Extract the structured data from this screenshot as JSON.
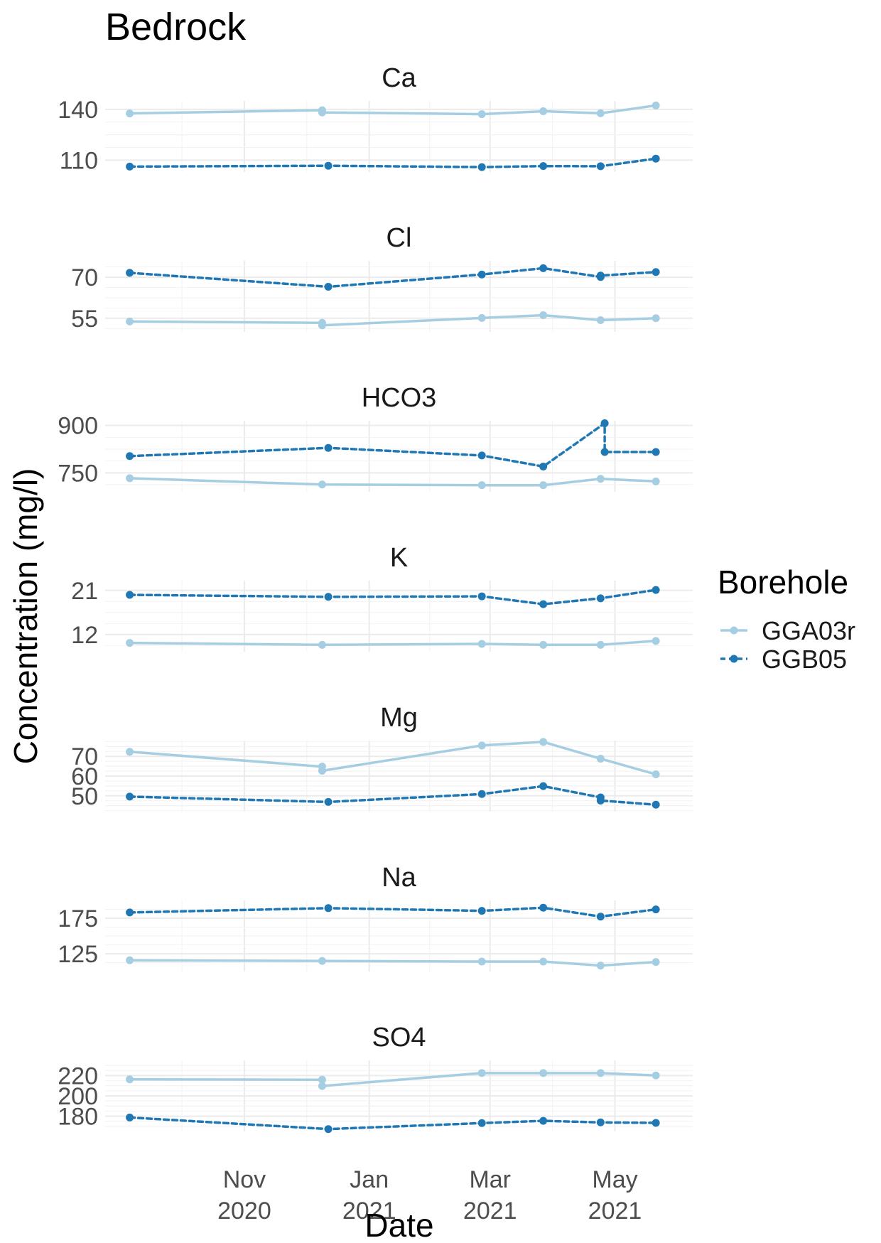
{
  "chart_data": {
    "type": "line",
    "title": "Bedrock",
    "xlabel": "Date",
    "ylabel": "Concentration (mg/l)",
    "legend": {
      "title": "Borehole",
      "position": "right",
      "entries": [
        {
          "name": "GGA03r",
          "color": "#a6cee3",
          "linetype": "solid"
        },
        {
          "name": "GGB05",
          "color": "#1f78b4",
          "linetype": "dashed"
        }
      ]
    },
    "x_ticks": [
      {
        "date": "2020-11-01",
        "label1": "Nov",
        "label2": "2020"
      },
      {
        "date": "2021-01-01",
        "label1": "Jan",
        "label2": "2021"
      },
      {
        "date": "2021-03-01",
        "label1": "Mar",
        "label2": "2021"
      },
      {
        "date": "2021-05-01",
        "label1": "May",
        "label2": "2021"
      }
    ],
    "xlim": [
      "2020-08-25",
      "2021-06-08"
    ],
    "facets": [
      {
        "name": "Ca",
        "ylim": [
          103,
          145
        ],
        "yticks": [
          110,
          140
        ],
        "series": [
          {
            "name": "GGA03r",
            "x": [
              "2020-09-06",
              "2020-12-09",
              "2020-12-09",
              "2021-02-25",
              "2021-03-27",
              "2021-04-24",
              "2021-05-21"
            ],
            "y": [
              137.6,
              139.5,
              138.2,
              137.2,
              138.9,
              137.7,
              142.3
            ]
          },
          {
            "name": "GGB05",
            "x": [
              "2020-09-06",
              "2020-12-12",
              "2021-02-25",
              "2021-03-27",
              "2021-04-24",
              "2021-05-21"
            ],
            "y": [
              106.2,
              106.7,
              105.9,
              106.5,
              106.4,
              110.9
            ]
          }
        ]
      },
      {
        "name": "Cl",
        "ylim": [
          50,
          76
        ],
        "yticks": [
          55,
          70
        ],
        "series": [
          {
            "name": "GGA03r",
            "x": [
              "2020-09-06",
              "2020-12-09",
              "2020-12-09",
              "2021-02-25",
              "2021-03-27",
              "2021-04-24",
              "2021-05-21"
            ],
            "y": [
              53.8,
              53.3,
              52.4,
              55.1,
              56.1,
              54.3,
              55.0
            ]
          },
          {
            "name": "GGB05",
            "x": [
              "2020-09-06",
              "2020-12-12",
              "2021-02-25",
              "2021-03-27",
              "2021-04-24",
              "2021-04-24",
              "2021-05-21"
            ],
            "y": [
              71.6,
              66.5,
              71.0,
              73.3,
              70.1,
              70.6,
              71.9
            ]
          }
        ]
      },
      {
        "name": "HCO3",
        "ylim": [
          690,
          915
        ],
        "yticks": [
          750,
          900
        ],
        "series": [
          {
            "name": "GGA03r",
            "x": [
              "2020-09-06",
              "2020-12-09",
              "2021-02-25",
              "2021-03-27",
              "2021-04-24",
              "2021-05-21"
            ],
            "y": [
              733,
              713,
              711,
              711,
              731,
              723
            ]
          },
          {
            "name": "GGB05",
            "x": [
              "2020-09-06",
              "2020-12-12",
              "2021-02-25",
              "2021-03-27",
              "2021-04-26",
              "2021-04-26",
              "2021-05-21"
            ],
            "y": [
              803,
              829,
              805,
              770,
              907,
              816,
              816
            ]
          }
        ]
      },
      {
        "name": "K",
        "ylim": [
          8.5,
          23
        ],
        "yticks": [
          12,
          21
        ],
        "series": [
          {
            "name": "GGA03r",
            "x": [
              "2020-09-06",
              "2020-12-09",
              "2021-02-25",
              "2021-03-27",
              "2021-04-24",
              "2021-05-21"
            ],
            "y": [
              10.3,
              9.9,
              10.1,
              9.9,
              9.9,
              10.7
            ]
          },
          {
            "name": "GGB05",
            "x": [
              "2020-09-06",
              "2020-12-12",
              "2021-02-25",
              "2021-03-27",
              "2021-04-24",
              "2021-05-21"
            ],
            "y": [
              20.1,
              19.7,
              19.8,
              18.2,
              19.4,
              21.1
            ]
          }
        ]
      },
      {
        "name": "Mg",
        "ylim": [
          42,
          78
        ],
        "yticks": [
          50,
          60,
          70
        ],
        "series": [
          {
            "name": "GGA03r",
            "x": [
              "2020-09-06",
              "2020-12-09",
              "2020-12-09",
              "2021-02-25",
              "2021-03-27",
              "2021-04-24",
              "2021-05-21"
            ],
            "y": [
              72.3,
              64.8,
              62.7,
              75.5,
              77.3,
              68.8,
              60.9
            ]
          },
          {
            "name": "GGB05",
            "x": [
              "2020-09-06",
              "2020-12-12",
              "2021-02-25",
              "2021-03-27",
              "2021-04-24",
              "2021-04-24",
              "2021-05-21"
            ],
            "y": [
              49.6,
              46.9,
              50.9,
              54.9,
              49.2,
              47.6,
              45.5
            ]
          }
        ]
      },
      {
        "name": "Na",
        "ylim": [
          100,
          200
        ],
        "yticks": [
          125,
          175
        ],
        "series": [
          {
            "name": "GGA03r",
            "x": [
              "2020-09-06",
              "2020-12-09",
              "2021-02-25",
              "2021-03-27",
              "2021-04-24",
              "2021-05-21"
            ],
            "y": [
              115.9,
              114.9,
              114.0,
              114.0,
              108.4,
              113.4
            ]
          },
          {
            "name": "GGB05",
            "x": [
              "2020-09-06",
              "2020-12-12",
              "2021-02-25",
              "2021-03-27",
              "2021-04-24",
              "2021-05-21"
            ],
            "y": [
              183.1,
              189.2,
              185.4,
              189.8,
              177.3,
              187.4
            ]
          }
        ]
      },
      {
        "name": "SO4",
        "ylim": [
          165,
          235
        ],
        "yticks": [
          180,
          200,
          220
        ],
        "series": [
          {
            "name": "GGA03r",
            "x": [
              "2020-09-06",
              "2020-12-09",
              "2020-12-09",
              "2021-02-25",
              "2021-03-27",
              "2021-04-24",
              "2021-05-21"
            ],
            "y": [
              216.3,
              215.9,
              209.7,
              222.5,
              222.5,
              222.5,
              220.1
            ]
          },
          {
            "name": "GGB05",
            "x": [
              "2020-09-06",
              "2020-12-12",
              "2021-02-25",
              "2021-03-27",
              "2021-04-24",
              "2021-05-21"
            ],
            "y": [
              178.7,
              167.3,
              173.2,
              175.4,
              173.9,
              173.4
            ]
          }
        ]
      }
    ]
  }
}
